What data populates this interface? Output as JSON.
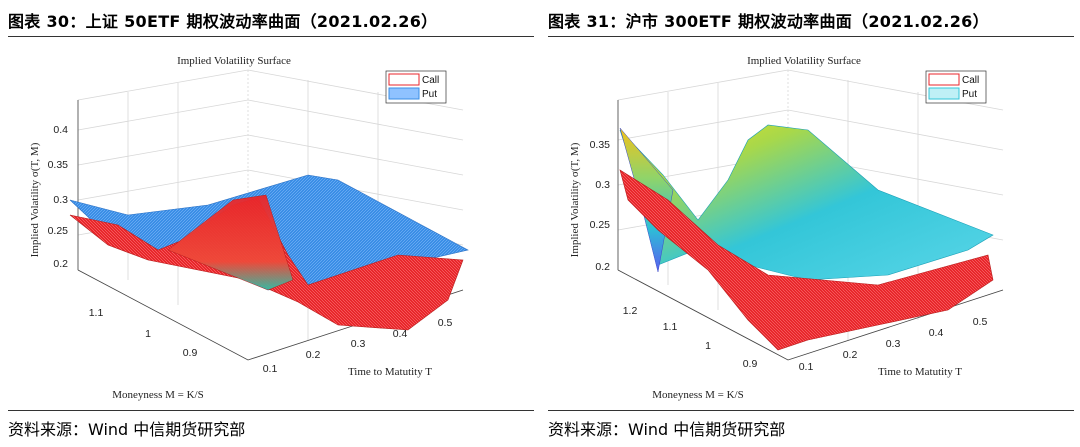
{
  "figures": [
    {
      "title": "图表 30：上证 50ETF 期权波动率曲面（2021.02.26）",
      "source": "资料来源：Wind 中信期货研究部",
      "plot": {
        "title": "Implied Volatility Surface",
        "zlabel": "Implied Volatility σ(T, M)",
        "xlabel": "Time to Matutity T",
        "ylabel": "Moneyness M = K/S",
        "legend": [
          "Call",
          "Put"
        ],
        "z_ticks": [
          "0.4",
          "0.35",
          "0.3",
          "0.25",
          "0.2"
        ],
        "y_ticks": [
          "1.1",
          "1",
          "0.9"
        ],
        "x_ticks": [
          "0.1",
          "0.2",
          "0.3",
          "0.4",
          "0.5"
        ]
      },
      "colors": {
        "call": "#e8262b",
        "put": "#3a8ee6"
      }
    },
    {
      "title": "图表 31：沪市 300ETF 期权波动率曲面（2021.02.26）",
      "source": "资料来源：Wind 中信期货研究部",
      "plot": {
        "title": "Implied Volatility Surface",
        "zlabel": "Implied Volatility σ(T, M)",
        "xlabel": "Time to Matutity T",
        "ylabel": "Moneyness M = K/S",
        "legend": [
          "Call",
          "Put"
        ],
        "z_ticks": [
          "0.35",
          "0.3",
          "0.25",
          "0.2"
        ],
        "y_ticks": [
          "1.2",
          "1.1",
          "1",
          "0.9"
        ],
        "x_ticks": [
          "0.1",
          "0.2",
          "0.3",
          "0.4",
          "0.5"
        ]
      },
      "colors": {
        "call": "#e8262b",
        "put": "#33c6d8"
      }
    }
  ]
}
